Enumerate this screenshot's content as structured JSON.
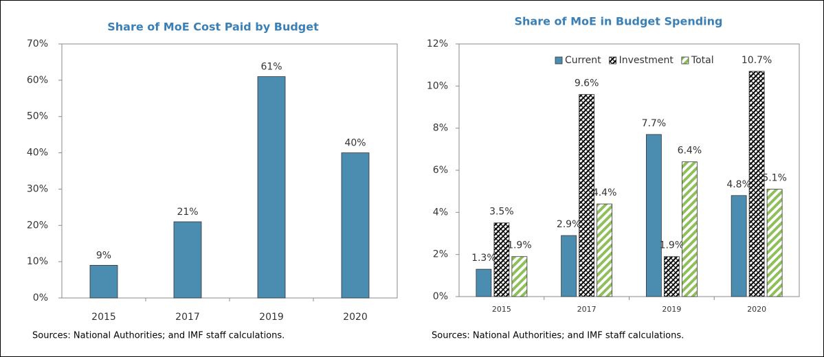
{
  "chart_data": [
    {
      "type": "bar",
      "title": "Share of MoE Cost Paid by Budget",
      "categories": [
        "2015",
        "2017",
        "2019",
        "2020"
      ],
      "values": [
        9,
        21,
        61,
        40
      ],
      "value_labels": [
        "9%",
        "21%",
        "61%",
        "40%"
      ],
      "color": "#4a8db0",
      "ylim": [
        0,
        70
      ],
      "yticks": [
        {
          "value": 0,
          "label": "0%"
        },
        {
          "value": 10,
          "label": "10%"
        },
        {
          "value": 20,
          "label": "20%"
        },
        {
          "value": 30,
          "label": "30%"
        },
        {
          "value": 40,
          "label": "40%"
        },
        {
          "value": 50,
          "label": "50%"
        },
        {
          "value": 60,
          "label": "60%"
        },
        {
          "value": 70,
          "label": "70%"
        }
      ],
      "source": "Sources: National Authorities; and IMF staff calculations."
    },
    {
      "type": "grouped_bar",
      "title": "Share of MoE in Budget Spending",
      "categories": [
        "2015",
        "2017",
        "2019",
        "2020"
      ],
      "series": [
        {
          "name": "Current",
          "color": "#4a8db0",
          "hatch": false,
          "values": [
            1.3,
            2.9,
            7.7,
            4.8
          ],
          "value_labels": [
            "1.3%",
            "2.9%",
            "7.7%",
            "4.8%"
          ]
        },
        {
          "name": "Investment",
          "color": "#000000",
          "hatch": true,
          "values": [
            3.5,
            9.6,
            1.9,
            10.7
          ],
          "value_labels": [
            "3.5%",
            "9.6%",
            "1.9%",
            "10.7%"
          ]
        },
        {
          "name": "Total",
          "color": "#8fbf5a",
          "hatch": true,
          "values": [
            1.9,
            4.4,
            6.4,
            5.1
          ],
          "value_labels": [
            "1.9%",
            "4.4%",
            "6.4%",
            "5.1%"
          ]
        }
      ],
      "ylim": [
        0,
        12
      ],
      "yticks": [
        {
          "value": 0,
          "label": "0%"
        },
        {
          "value": 2,
          "label": "2%"
        },
        {
          "value": 4,
          "label": "4%"
        },
        {
          "value": 6,
          "label": "6%"
        },
        {
          "value": 8,
          "label": "8%"
        },
        {
          "value": 10,
          "label": "10%"
        },
        {
          "value": 12,
          "label": "12%"
        }
      ],
      "legend": "top",
      "source": "Sources: National Authorities; and IMF staff calculations."
    }
  ]
}
